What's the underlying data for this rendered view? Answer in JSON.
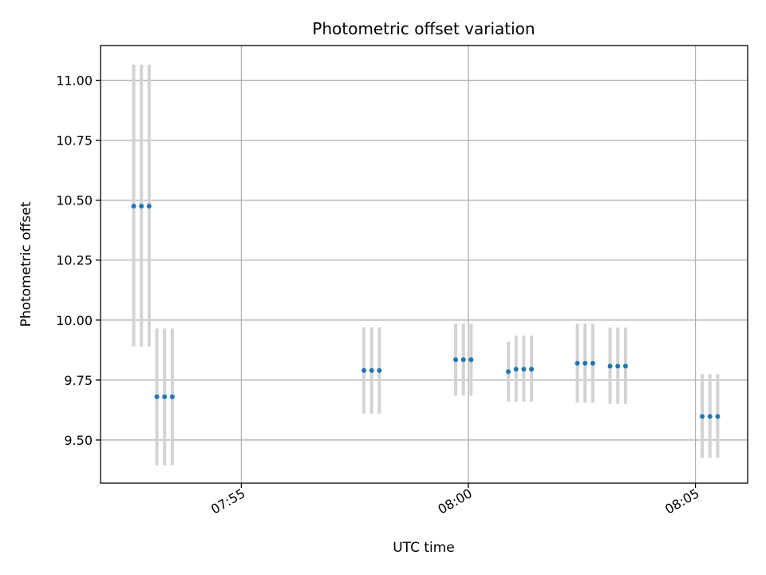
{
  "chart_data": {
    "type": "scatter",
    "title": "Photometric offset variation",
    "xlabel": "UTC time",
    "ylabel": "Photometric offset",
    "grid": true,
    "x_unit": "minutes after 07:00 UTC",
    "xlim": [
      51.9,
      66.15
    ],
    "ylim": [
      9.32,
      11.145
    ],
    "x_ticks": [
      {
        "value": 55,
        "label": "07:55"
      },
      {
        "value": 60,
        "label": "08:00"
      },
      {
        "value": 65,
        "label": "08:05"
      }
    ],
    "y_ticks": [
      {
        "value": 9.5,
        "label": "9.50"
      },
      {
        "value": 9.75,
        "label": "9.75"
      },
      {
        "value": 10.0,
        "label": "10.00"
      },
      {
        "value": 10.25,
        "label": "10.25"
      },
      {
        "value": 10.5,
        "label": "10.50"
      },
      {
        "value": 10.75,
        "label": "10.75"
      },
      {
        "value": 11.0,
        "label": "11.00"
      }
    ],
    "colors": {
      "point": "#1f77b4",
      "errorbar": "#d3d3d3",
      "grid": "#b0b0b0"
    },
    "series": [
      {
        "name": "photometric offset",
        "points": [
          {
            "x": 52.63,
            "y": 10.475,
            "yerr_low": 9.89,
            "yerr_high": 11.065
          },
          {
            "x": 52.8,
            "y": 10.475,
            "yerr_low": 9.89,
            "yerr_high": 11.065
          },
          {
            "x": 52.97,
            "y": 10.475,
            "yerr_low": 9.89,
            "yerr_high": 11.065
          },
          {
            "x": 53.14,
            "y": 9.68,
            "yerr_low": 9.395,
            "yerr_high": 9.965
          },
          {
            "x": 53.31,
            "y": 9.68,
            "yerr_low": 9.395,
            "yerr_high": 9.965
          },
          {
            "x": 53.48,
            "y": 9.68,
            "yerr_low": 9.395,
            "yerr_high": 9.965
          },
          {
            "x": 57.7,
            "y": 9.79,
            "yerr_low": 9.61,
            "yerr_high": 9.97
          },
          {
            "x": 57.87,
            "y": 9.79,
            "yerr_low": 9.61,
            "yerr_high": 9.97
          },
          {
            "x": 58.04,
            "y": 9.79,
            "yerr_low": 9.61,
            "yerr_high": 9.97
          },
          {
            "x": 59.72,
            "y": 9.835,
            "yerr_low": 9.685,
            "yerr_high": 9.985
          },
          {
            "x": 59.89,
            "y": 9.835,
            "yerr_low": 9.685,
            "yerr_high": 9.985
          },
          {
            "x": 60.06,
            "y": 9.835,
            "yerr_low": 9.685,
            "yerr_high": 9.985
          },
          {
            "x": 60.88,
            "y": 9.785,
            "yerr_low": 9.66,
            "yerr_high": 9.91
          },
          {
            "x": 61.05,
            "y": 9.795,
            "yerr_low": 9.66,
            "yerr_high": 9.935
          },
          {
            "x": 61.22,
            "y": 9.795,
            "yerr_low": 9.66,
            "yerr_high": 9.935
          },
          {
            "x": 61.39,
            "y": 9.795,
            "yerr_low": 9.66,
            "yerr_high": 9.935
          },
          {
            "x": 62.4,
            "y": 9.82,
            "yerr_low": 9.655,
            "yerr_high": 9.985
          },
          {
            "x": 62.57,
            "y": 9.82,
            "yerr_low": 9.655,
            "yerr_high": 9.985
          },
          {
            "x": 62.74,
            "y": 9.82,
            "yerr_low": 9.655,
            "yerr_high": 9.985
          },
          {
            "x": 63.12,
            "y": 9.808,
            "yerr_low": 9.65,
            "yerr_high": 9.968
          },
          {
            "x": 63.29,
            "y": 9.808,
            "yerr_low": 9.65,
            "yerr_high": 9.968
          },
          {
            "x": 63.46,
            "y": 9.808,
            "yerr_low": 9.65,
            "yerr_high": 9.968
          },
          {
            "x": 65.15,
            "y": 9.598,
            "yerr_low": 9.425,
            "yerr_high": 9.775
          },
          {
            "x": 65.32,
            "y": 9.598,
            "yerr_low": 9.425,
            "yerr_high": 9.775
          },
          {
            "x": 65.49,
            "y": 9.598,
            "yerr_low": 9.425,
            "yerr_high": 9.775
          }
        ]
      }
    ]
  }
}
